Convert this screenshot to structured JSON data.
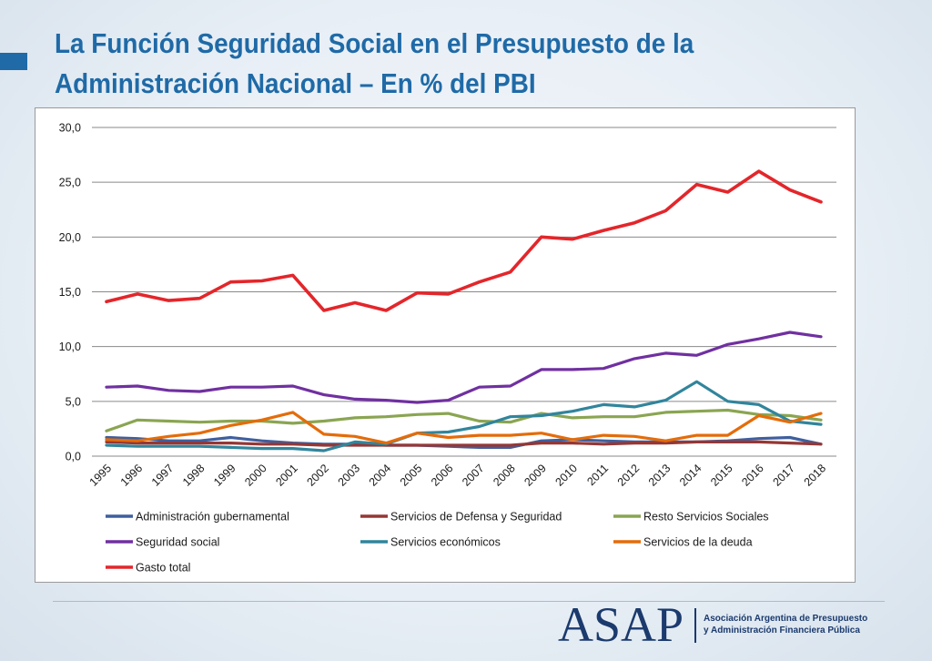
{
  "header": {
    "title_line1": "La Función Seguridad Social en el Presupuesto de la",
    "title_line2": "Administración Nacional – En % del PBI"
  },
  "chart_data": {
    "type": "line",
    "title": "",
    "xlabel": "",
    "ylabel": "",
    "ylim": [
      0,
      30
    ],
    "yticks": [
      0,
      5,
      10,
      15,
      20,
      25,
      30
    ],
    "ytick_labels": [
      "0,0",
      "5,0",
      "10,0",
      "15,0",
      "20,0",
      "25,0",
      "30,0"
    ],
    "grid": true,
    "legend_position": "bottom",
    "categories": [
      "1995",
      "1996",
      "1997",
      "1998",
      "1999",
      "2000",
      "2001",
      "2002",
      "2003",
      "2004",
      "2005",
      "2006",
      "2007",
      "2008",
      "2009",
      "2010",
      "2011",
      "2012",
      "2013",
      "2014",
      "2015",
      "2016",
      "2017",
      "2018"
    ],
    "series": [
      {
        "name": "Administración gubernamental",
        "color": "#3f5f9e",
        "values": [
          1.7,
          1.6,
          1.4,
          1.4,
          1.7,
          1.4,
          1.2,
          1.1,
          1.1,
          1.0,
          1.0,
          0.9,
          0.8,
          0.8,
          1.4,
          1.5,
          1.4,
          1.3,
          1.3,
          1.3,
          1.4,
          1.6,
          1.7,
          1.1
        ]
      },
      {
        "name": "Servicios de Defensa y Seguridad",
        "color": "#953735",
        "values": [
          1.3,
          1.2,
          1.2,
          1.2,
          1.2,
          1.1,
          1.1,
          1.0,
          1.0,
          1.0,
          1.0,
          1.0,
          1.0,
          1.0,
          1.2,
          1.2,
          1.1,
          1.2,
          1.2,
          1.3,
          1.3,
          1.3,
          1.2,
          1.1
        ]
      },
      {
        "name": "Resto Servicios Sociales",
        "color": "#8aa552",
        "values": [
          2.3,
          3.3,
          3.2,
          3.1,
          3.2,
          3.2,
          3.0,
          3.2,
          3.5,
          3.6,
          3.8,
          3.9,
          3.2,
          3.1,
          3.9,
          3.5,
          3.6,
          3.6,
          4.0,
          4.1,
          4.2,
          3.8,
          3.7,
          3.3
        ]
      },
      {
        "name": "Seguridad social",
        "color": "#7030a0",
        "values": [
          6.3,
          6.4,
          6.0,
          5.9,
          6.3,
          6.3,
          6.4,
          5.6,
          5.2,
          5.1,
          4.9,
          5.1,
          6.3,
          6.4,
          7.9,
          7.9,
          8.0,
          8.9,
          9.4,
          9.2,
          10.2,
          10.7,
          11.3,
          10.9
        ]
      },
      {
        "name": "Servicios económicos",
        "color": "#31859c",
        "values": [
          1.0,
          0.9,
          0.9,
          0.9,
          0.8,
          0.7,
          0.7,
          0.5,
          1.3,
          1.1,
          2.1,
          2.2,
          2.7,
          3.6,
          3.7,
          4.1,
          4.7,
          4.5,
          5.1,
          6.8,
          5.0,
          4.7,
          3.2,
          2.9
        ]
      },
      {
        "name": "Servicios de la deuda",
        "color": "#e46c0a",
        "values": [
          1.5,
          1.4,
          1.8,
          2.1,
          2.8,
          3.3,
          4.0,
          2.0,
          1.8,
          1.2,
          2.1,
          1.7,
          1.9,
          1.9,
          2.1,
          1.5,
          1.9,
          1.8,
          1.4,
          1.9,
          1.9,
          3.7,
          3.1,
          3.9
        ]
      },
      {
        "name": "Gasto total",
        "color": "#e3262b",
        "values": [
          14.1,
          14.8,
          14.2,
          14.4,
          15.9,
          16.0,
          16.5,
          13.3,
          14.0,
          13.3,
          14.9,
          14.8,
          15.9,
          16.8,
          20.0,
          19.8,
          20.6,
          21.3,
          22.4,
          24.8,
          24.1,
          26.0,
          24.3,
          23.2
        ]
      }
    ]
  },
  "footer": {
    "logo_text": "ASAP",
    "org_line1": "Asociación Argentina de Presupuesto",
    "org_line2": "y Administración Financiera Pública"
  },
  "colors": {
    "title": "#1f6aa7",
    "accent": "#1f6aa7",
    "logo": "#1b3a6d",
    "gridline": "#8a8a8a"
  }
}
